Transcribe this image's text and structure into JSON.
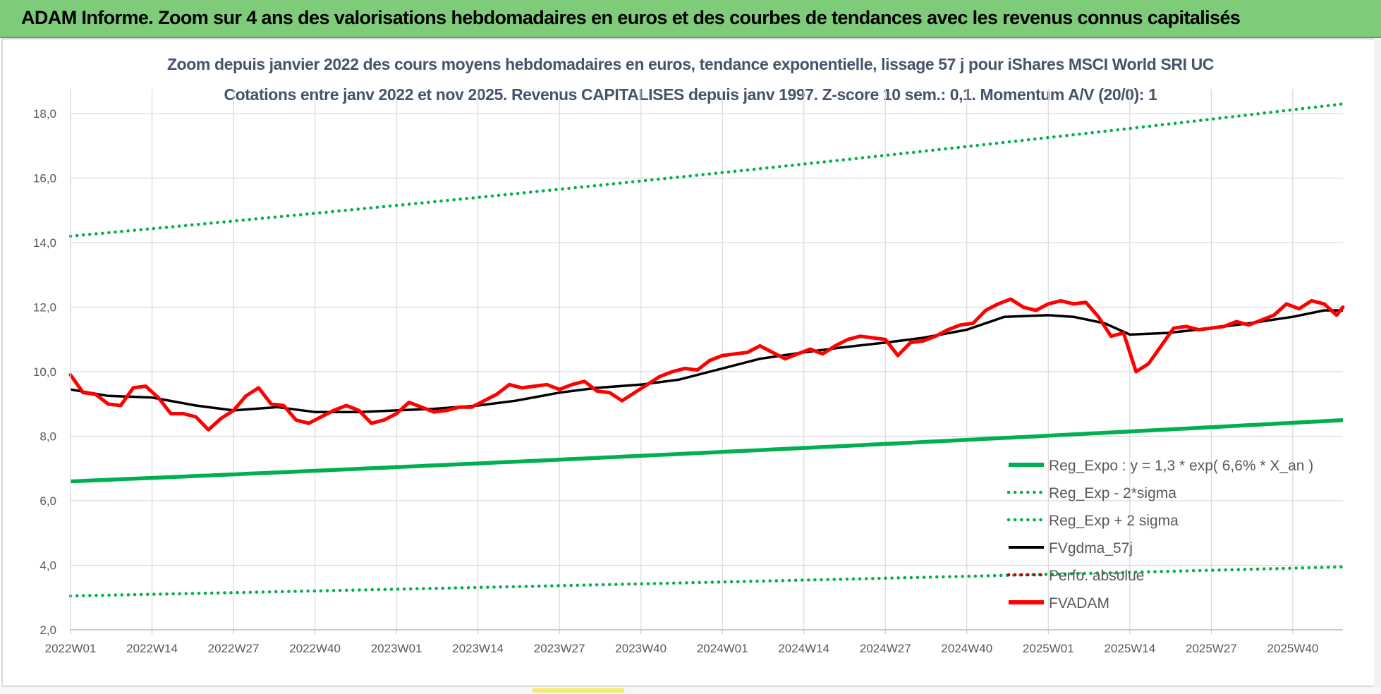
{
  "banner": {
    "title": "ADAM Informe. Zoom sur 4 ans des valorisations hebdomadaires en euros et des courbes de tendances avec les revenus connus capitalisés"
  },
  "chart_data": {
    "type": "line",
    "title": "Zoom depuis janvier 2022 des cours moyens hebdomadaires en euros, tendance exponentielle, lissage 57 j pour iShares MSCI World SRI UC",
    "subtitle": "Cotations entre janv 2022 et nov 2025. Revenus CAPITALISES depuis janv 1997. Z-score 10 sem.: 0,1. Momentum A/V (20/0): 1",
    "xlabel": "",
    "ylabel": "",
    "ylim": [
      2,
      19
    ],
    "yticks": [
      "2,0",
      "4,0",
      "6,0",
      "8,0",
      "10,0",
      "12,0",
      "14,0",
      "16,0",
      "18,0"
    ],
    "xticks": [
      "2022W01",
      "2022W14",
      "2022W27",
      "2022W40",
      "2023W01",
      "2023W14",
      "2023W27",
      "2023W40",
      "2024W01",
      "2024W14",
      "2024W27",
      "2024W40",
      "2025W01",
      "2025W14",
      "2025W27",
      "2025W40"
    ],
    "grid": true,
    "legend_position": "bottom-right",
    "legend": [
      {
        "label": "Reg_Expo : y = 1,3 * exp( 6,6% *  X_an )",
        "color": "#00b050",
        "style": "solid"
      },
      {
        "label": "Reg_Exp - 2*sigma",
        "color": "#00b050",
        "style": "dotted"
      },
      {
        "label": "Reg_Exp + 2 sigma",
        "color": "#00b050",
        "style": "dotted"
      },
      {
        "label": "FVgdma_57j",
        "color": "#000000",
        "style": "solid"
      },
      {
        "label": "Perfo. absolue",
        "color": "#c00000",
        "style": "dotted"
      },
      {
        "label": "FVADAM",
        "color": "#ff0000",
        "style": "solid"
      }
    ],
    "week_count": 204,
    "series": [
      {
        "name": "Reg_Expo : y = 1,3 * exp( 6,6% *  X_an )",
        "color": "#00b050",
        "style": "solid",
        "x_index": [
          0,
          203
        ],
        "values": [
          6.6,
          8.5
        ],
        "growth": "exponential"
      },
      {
        "name": "Reg_Exp - 2*sigma",
        "color": "#00b050",
        "style": "dotted",
        "x_index": [
          0,
          203
        ],
        "values": [
          3.05,
          3.95
        ],
        "growth": "exponential"
      },
      {
        "name": "Reg_Exp + 2 sigma",
        "color": "#00b050",
        "style": "dotted",
        "x_index": [
          0,
          203
        ],
        "values": [
          14.2,
          18.3
        ],
        "growth": "exponential"
      },
      {
        "name": "FVgdma_57j",
        "color": "#000000",
        "style": "solid",
        "x_index": [
          0,
          6,
          13,
          20,
          26,
          33,
          39,
          46,
          52,
          58,
          65,
          71,
          78,
          84,
          91,
          97,
          104,
          110,
          117,
          123,
          130,
          136,
          143,
          149,
          156,
          160,
          165,
          169,
          175,
          182,
          188,
          195,
          200,
          203
        ],
        "values": [
          9.45,
          9.25,
          9.2,
          8.95,
          8.8,
          8.9,
          8.75,
          8.75,
          8.8,
          8.85,
          8.95,
          9.1,
          9.35,
          9.5,
          9.6,
          9.75,
          10.1,
          10.4,
          10.6,
          10.75,
          10.9,
          11.05,
          11.3,
          11.7,
          11.75,
          11.7,
          11.5,
          11.15,
          11.2,
          11.35,
          11.5,
          11.7,
          11.9,
          11.9
        ]
      },
      {
        "name": "FVADAM",
        "color": "#ff0000",
        "style": "solid",
        "x_index": [
          0,
          2,
          4,
          6,
          8,
          10,
          12,
          14,
          16,
          18,
          20,
          22,
          24,
          26,
          28,
          30,
          32,
          34,
          36,
          38,
          40,
          42,
          44,
          46,
          48,
          50,
          52,
          54,
          56,
          58,
          60,
          62,
          64,
          66,
          68,
          70,
          72,
          74,
          76,
          78,
          80,
          82,
          84,
          86,
          88,
          90,
          92,
          94,
          96,
          98,
          100,
          102,
          104,
          106,
          108,
          110,
          112,
          114,
          116,
          118,
          120,
          122,
          124,
          126,
          128,
          130,
          132,
          134,
          136,
          138,
          140,
          142,
          144,
          146,
          148,
          150,
          152,
          154,
          156,
          158,
          160,
          162,
          164,
          166,
          168,
          170,
          172,
          174,
          176,
          178,
          180,
          182,
          184,
          186,
          188,
          190,
          192,
          194,
          196,
          198,
          200,
          202,
          203
        ],
        "values": [
          9.9,
          9.35,
          9.3,
          9.0,
          8.95,
          9.5,
          9.55,
          9.2,
          8.7,
          8.7,
          8.6,
          8.2,
          8.55,
          8.8,
          9.25,
          9.5,
          9.0,
          8.95,
          8.5,
          8.4,
          8.6,
          8.8,
          8.95,
          8.8,
          8.4,
          8.5,
          8.7,
          9.05,
          8.9,
          8.75,
          8.8,
          8.9,
          8.9,
          9.1,
          9.3,
          9.6,
          9.5,
          9.55,
          9.6,
          9.45,
          9.6,
          9.7,
          9.4,
          9.35,
          9.1,
          9.35,
          9.6,
          9.85,
          10.0,
          10.1,
          10.05,
          10.35,
          10.5,
          10.55,
          10.6,
          10.8,
          10.6,
          10.4,
          10.55,
          10.7,
          10.55,
          10.8,
          11.0,
          11.1,
          11.05,
          11.0,
          10.5,
          10.9,
          10.95,
          11.1,
          11.3,
          11.45,
          11.5,
          11.9,
          12.1,
          12.25,
          12.0,
          11.9,
          12.1,
          12.2,
          12.1,
          12.15,
          11.7,
          11.1,
          11.2,
          10.0,
          10.25,
          10.8,
          11.35,
          11.4,
          11.3,
          11.35,
          11.4,
          11.55,
          11.45,
          11.6,
          11.75,
          12.1,
          11.95,
          12.2,
          12.1,
          11.75,
          12.0
        ]
      },
      {
        "name": "Perfo. absolue",
        "color": "#c00000",
        "style": "dotted",
        "x_index": [],
        "values": []
      }
    ]
  }
}
